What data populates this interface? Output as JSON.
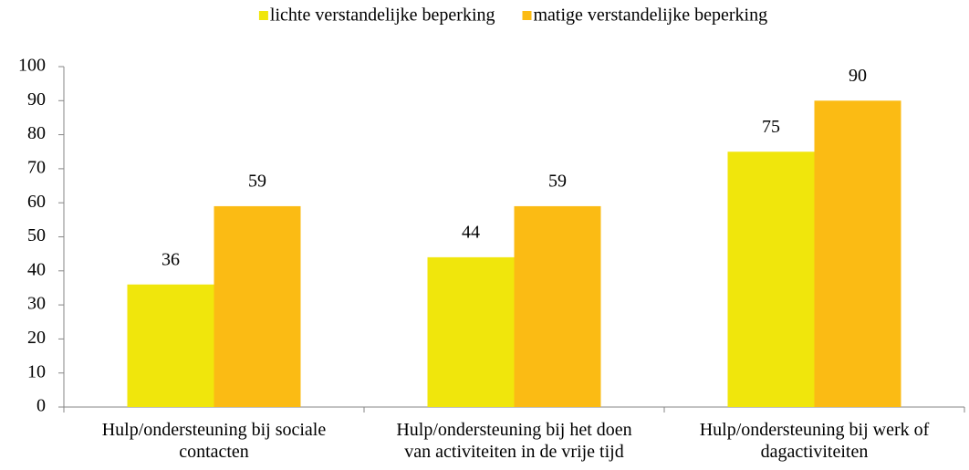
{
  "chart_data": {
    "type": "bar",
    "categories": [
      "Hulp/ondersteuning bij sociale\ncontacten",
      "Hulp/ondersteuning bij het doen\nvan activiteiten in de vrije tijd",
      "Hulp/ondersteuning bij werk of\ndagactiviteiten"
    ],
    "series": [
      {
        "name": "lichte verstandelijke beperking",
        "color": "#f0e60c",
        "values": [
          36,
          44,
          75
        ]
      },
      {
        "name": "matige verstandelijke beperking",
        "color": "#fbbb14",
        "values": [
          59,
          59,
          90
        ]
      }
    ],
    "ylim": [
      0,
      100
    ],
    "yticks": [
      0,
      10,
      20,
      30,
      40,
      50,
      60,
      70,
      80,
      90,
      100
    ],
    "legend": "top",
    "grid": false
  }
}
